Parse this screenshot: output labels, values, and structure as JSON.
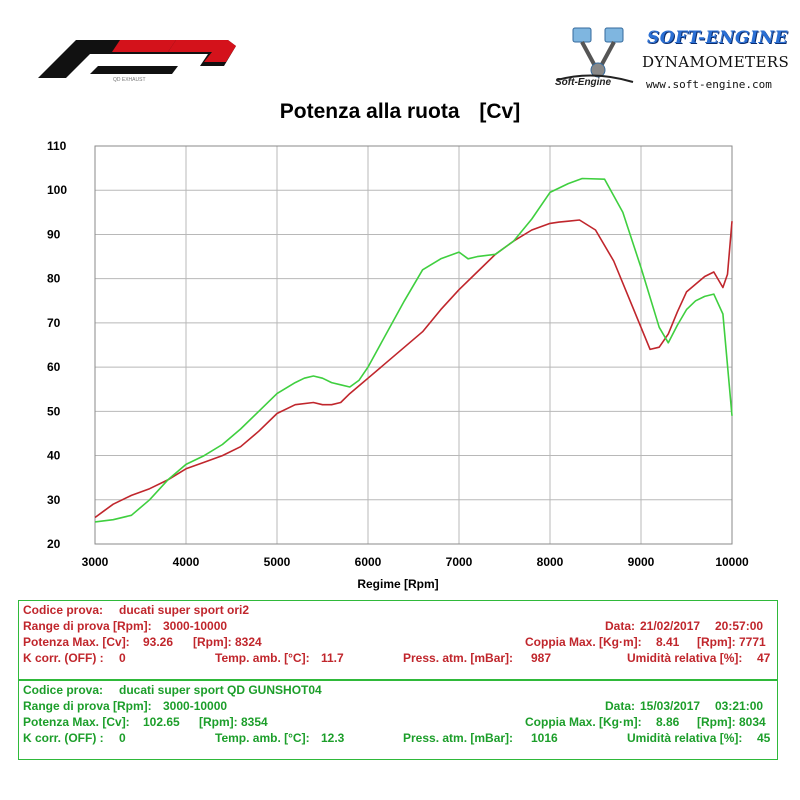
{
  "header": {
    "brand_logo": "QD exhaust logo",
    "dyno_brand": "SOFT-ENGINE",
    "dyno_sub": "DYNAMOMETERS",
    "dyno_url": "www.soft-engine.com",
    "dyno_small": "Soft-Engine"
  },
  "colors": {
    "run1": "#c0262c",
    "run2": "#3fcf3f",
    "grid": "#b8b8b8"
  },
  "chart_data": {
    "type": "line",
    "title": "Potenza alla ruota",
    "title_unit": "[Cv]",
    "xlabel": "Regime [Rpm]",
    "ylabel": "",
    "xlim": [
      3000,
      10000
    ],
    "ylim": [
      20,
      110
    ],
    "grid": true,
    "xticks": [
      "3000",
      "4000",
      "5000",
      "6000",
      "7000",
      "8000",
      "9000",
      "10000"
    ],
    "yticks": [
      "20",
      "30",
      "40",
      "50",
      "60",
      "70",
      "80",
      "90",
      "100",
      "110"
    ],
    "series": [
      {
        "color": "#c0262c",
        "x": [
          3000,
          3100,
          3200,
          3400,
          3600,
          3800,
          4000,
          4200,
          4400,
          4600,
          4800,
          5000,
          5200,
          5400,
          5500,
          5600,
          5700,
          5800,
          6000,
          6200,
          6400,
          6600,
          6800,
          7000,
          7200,
          7400,
          7600,
          7800,
          8000,
          8100,
          8200,
          8324,
          8500,
          8700,
          8900,
          9000,
          9100,
          9200,
          9300,
          9400,
          9500,
          9700,
          9800,
          9900,
          9950,
          10000
        ],
        "y": [
          26,
          27.5,
          29,
          31,
          32.5,
          34.5,
          37,
          38.5,
          40,
          42,
          45.5,
          49.5,
          51.5,
          52,
          51.5,
          51.5,
          52,
          54,
          57.5,
          61,
          64.5,
          68,
          73,
          77.5,
          81.5,
          85.5,
          88.5,
          91,
          92.5,
          92.8,
          93,
          93.26,
          91,
          84,
          74,
          69,
          64,
          64.5,
          67.5,
          72.5,
          77,
          80.5,
          81.5,
          78,
          81,
          93
        ]
      },
      {
        "color": "#3fcf3f",
        "x": [
          3000,
          3200,
          3400,
          3600,
          3800,
          4000,
          4200,
          4400,
          4600,
          4800,
          5000,
          5200,
          5300,
          5400,
          5500,
          5600,
          5700,
          5800,
          5900,
          6000,
          6200,
          6400,
          6600,
          6800,
          7000,
          7100,
          7200,
          7400,
          7600,
          7800,
          8000,
          8200,
          8354,
          8600,
          8800,
          9000,
          9200,
          9300,
          9400,
          9500,
          9600,
          9700,
          9800,
          9900,
          10000
        ],
        "y": [
          25,
          25.5,
          26.5,
          30,
          34.5,
          38,
          40,
          42.5,
          46,
          50,
          54,
          56.5,
          57.5,
          58,
          57.5,
          56.5,
          56,
          55.5,
          57,
          60,
          67.5,
          75,
          82,
          84.5,
          86,
          84.5,
          85,
          85.5,
          88.5,
          93.5,
          99.5,
          101.5,
          102.65,
          102.5,
          95,
          82.5,
          69,
          65.5,
          69.5,
          73,
          75,
          76,
          76.5,
          72,
          49
        ]
      }
    ]
  },
  "run1": {
    "codice_label": "Codice prova:",
    "codice_value": "ducati super sport ori2",
    "range_label": "Range di prova [Rpm]:",
    "range_value": "3000-10000",
    "data_label": "Data:",
    "data_value": "21/02/2017",
    "time_value": "20:57:00",
    "pot_label": "Potenza Max. [Cv]:",
    "pot_value": "93.26",
    "pot_rpm_label": "[Rpm]:",
    "pot_rpm_value": "8324",
    "coppia_label": "Coppia Max. [Kg·m]:",
    "coppia_value": "8.41",
    "coppia_rpm_label": "[Rpm]:",
    "coppia_rpm_value": "7771",
    "kcorr_label": "K corr. (OFF) :",
    "kcorr_value": "0",
    "temp_label": "Temp. amb. [°C]:",
    "temp_value": "11.7",
    "press_label": "Press. atm. [mBar]:",
    "press_value": "987",
    "umid_label": "Umidità relativa [%]:",
    "umid_value": "47"
  },
  "run2": {
    "codice_label": "Codice prova:",
    "codice_value": "ducati super sport QD GUNSHOT04",
    "range_label": "Range di prova [Rpm]:",
    "range_value": "3000-10000",
    "data_label": "Data:",
    "data_value": "15/03/2017",
    "time_value": "03:21:00",
    "pot_label": "Potenza Max. [Cv]:",
    "pot_value": "102.65",
    "pot_rpm_label": "[Rpm]:",
    "pot_rpm_value": "8354",
    "coppia_label": "Coppia Max. [Kg·m]:",
    "coppia_value": "8.86",
    "coppia_rpm_label": "[Rpm]:",
    "coppia_rpm_value": "8034",
    "kcorr_label": "K corr. (OFF) :",
    "kcorr_value": "0",
    "temp_label": "Temp. amb. [°C]:",
    "temp_value": "12.3",
    "press_label": "Press. atm. [mBar]:",
    "press_value": "1016",
    "umid_label": "Umidità relativa [%]:",
    "umid_value": "45"
  }
}
